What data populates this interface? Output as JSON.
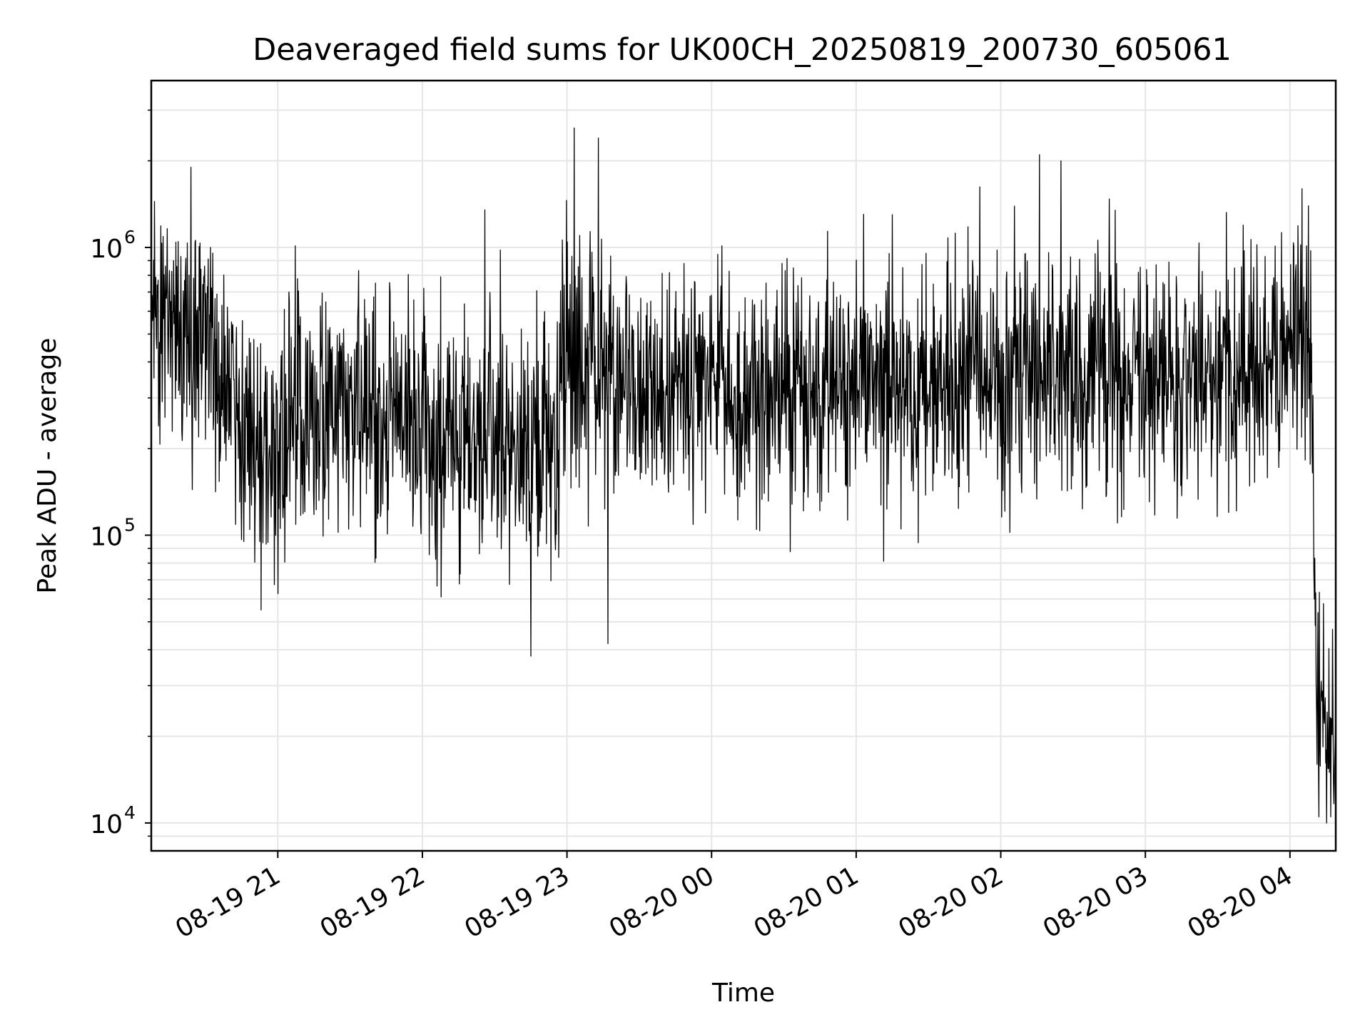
{
  "chart_data": {
    "type": "line",
    "title": "Deaveraged field sums for UK00CH_20250819_200730_605061",
    "xlabel": "Time",
    "ylabel": "Peak ADU - average",
    "y_scale": "log",
    "ylim": [
      8000,
      3800000
    ],
    "xlim": [
      "2025-08-19 20:07:30",
      "2025-08-20 04:19:00"
    ],
    "grid": "on (major and minor)",
    "x_tick_labels": [
      {
        "time": "2025-08-19 21:00",
        "label": "08-19 21"
      },
      {
        "time": "2025-08-19 22:00",
        "label": "08-19 22"
      },
      {
        "time": "2025-08-19 23:00",
        "label": "08-19 23"
      },
      {
        "time": "2025-08-20 00:00",
        "label": "08-20 00"
      },
      {
        "time": "2025-08-20 01:00",
        "label": "08-20 01"
      },
      {
        "time": "2025-08-20 02:00",
        "label": "08-20 02"
      },
      {
        "time": "2025-08-20 03:00",
        "label": "08-20 03"
      },
      {
        "time": "2025-08-20 04:00",
        "label": "08-20 04"
      }
    ],
    "y_tick_labels": [
      {
        "value": 10000,
        "base": "10",
        "exp": "4"
      },
      {
        "value": 100000,
        "base": "10",
        "exp": "5"
      },
      {
        "value": 1000000,
        "base": "10",
        "exp": "6"
      }
    ],
    "series": [
      {
        "color": "#000000",
        "points": [
          [
            "2025-08-19 20:07",
            700000
          ],
          [
            "2025-08-19 20:12",
            500000
          ],
          [
            "2025-08-19 20:17",
            520000
          ],
          [
            "2025-08-19 20:22",
            450000
          ],
          [
            "2025-08-19 20:27",
            560000
          ],
          [
            "2025-08-19 20:33",
            480000
          ],
          [
            "2025-08-19 20:38",
            330000
          ],
          [
            "2025-08-19 20:44",
            250000
          ],
          [
            "2025-08-19 20:50",
            210000
          ],
          [
            "2025-08-19 20:56",
            190000
          ],
          [
            "2025-08-19 21:05",
            260000
          ],
          [
            "2025-08-19 21:15",
            280000
          ],
          [
            "2025-08-19 21:25",
            300000
          ],
          [
            "2025-08-19 21:35",
            280000
          ],
          [
            "2025-08-19 21:45",
            250000
          ],
          [
            "2025-08-19 21:55",
            250000
          ],
          [
            "2025-08-19 22:05",
            230000
          ],
          [
            "2025-08-19 22:15",
            220000
          ],
          [
            "2025-08-19 22:25",
            240000
          ],
          [
            "2025-08-19 22:35",
            220000
          ],
          [
            "2025-08-19 22:45",
            200000
          ],
          [
            "2025-08-19 22:55",
            210000
          ],
          [
            "2025-08-19 23:00",
            420000
          ],
          [
            "2025-08-19 23:10",
            400000
          ],
          [
            "2025-08-19 23:25",
            350000
          ],
          [
            "2025-08-19 23:40",
            330000
          ],
          [
            "2025-08-19 23:55",
            310000
          ],
          [
            "2025-08-20 00:10",
            310000
          ],
          [
            "2025-08-20 00:25",
            330000
          ],
          [
            "2025-08-20 00:40",
            300000
          ],
          [
            "2025-08-20 00:55",
            320000
          ],
          [
            "2025-08-20 01:10",
            330000
          ],
          [
            "2025-08-20 01:25",
            340000
          ],
          [
            "2025-08-20 01:40",
            330000
          ],
          [
            "2025-08-20 01:55",
            350000
          ],
          [
            "2025-08-20 02:10",
            380000
          ],
          [
            "2025-08-20 02:25",
            390000
          ],
          [
            "2025-08-20 02:40",
            360000
          ],
          [
            "2025-08-20 02:55",
            380000
          ],
          [
            "2025-08-20 03:10",
            360000
          ],
          [
            "2025-08-20 03:25",
            350000
          ],
          [
            "2025-08-20 03:40",
            350000
          ],
          [
            "2025-08-20 03:55",
            380000
          ],
          [
            "2025-08-20 04:05",
            600000
          ],
          [
            "2025-08-20 04:08",
            500000
          ],
          [
            "2025-08-20 04:11",
            30000
          ],
          [
            "2025-08-20 04:15",
            25000
          ],
          [
            "2025-08-20 04:19",
            20000
          ]
        ],
        "notable_extremes": [
          [
            "2025-08-19 20:24",
            1900000
          ],
          [
            "2025-08-19 20:53",
            55000
          ],
          [
            "2025-08-19 22:26",
            1350000
          ],
          [
            "2025-08-19 22:45",
            38000
          ],
          [
            "2025-08-19 23:03",
            2600000
          ],
          [
            "2025-08-19 23:13",
            2400000
          ],
          [
            "2025-08-19 23:17",
            42000
          ],
          [
            "2025-08-20 01:15",
            1300000
          ],
          [
            "2025-08-20 02:16",
            2100000
          ],
          [
            "2025-08-20 02:25",
            2000000
          ],
          [
            "2025-08-20 04:05",
            1600000
          ],
          [
            "2025-08-20 04:12",
            10500
          ],
          [
            "2025-08-20 04:17",
            10500
          ]
        ]
      }
    ]
  }
}
